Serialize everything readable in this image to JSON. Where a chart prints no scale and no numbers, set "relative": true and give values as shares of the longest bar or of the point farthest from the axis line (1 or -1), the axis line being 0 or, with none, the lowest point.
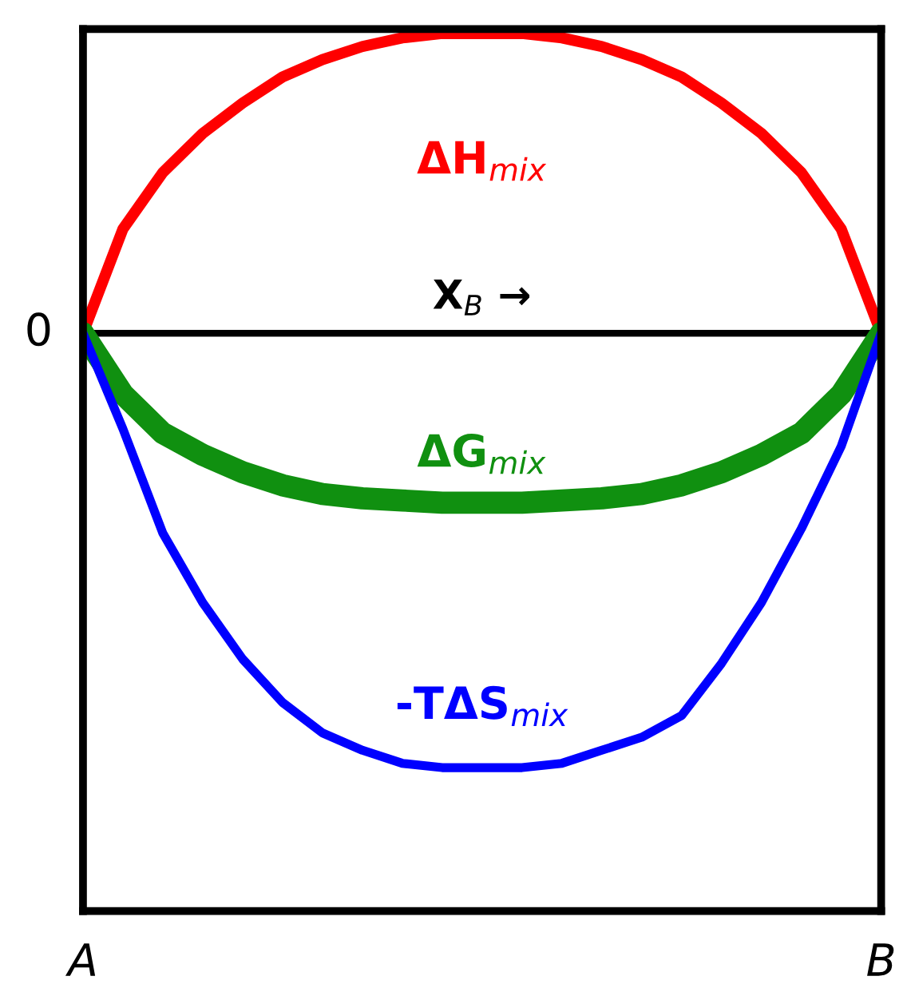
{
  "chart_data": {
    "type": "line",
    "relative": true,
    "xlabel": "X$_{B}$ →",
    "categories": [
      "A",
      null,
      null,
      null,
      null,
      null,
      null,
      null,
      null,
      null,
      null,
      null,
      null,
      null,
      null,
      null,
      null,
      null,
      null,
      null,
      "B"
    ],
    "series": [
      {
        "name": "ΔH$_{mix}$",
        "color": "#ff0000",
        "values": [
          0,
          0.24,
          0.37,
          0.46,
          0.53,
          0.59,
          0.63,
          0.66,
          0.68,
          0.69,
          0.69,
          0.69,
          0.68,
          0.66,
          0.63,
          0.59,
          0.53,
          0.46,
          0.37,
          0.24,
          0
        ]
      },
      {
        "name": "ΔG$_{mix}$",
        "color": "#109010",
        "values": [
          0,
          -0.14,
          -0.23,
          -0.28,
          -0.32,
          -0.35,
          -0.37,
          -0.38,
          -0.385,
          -0.39,
          -0.39,
          -0.39,
          -0.385,
          -0.38,
          -0.37,
          -0.35,
          -0.32,
          -0.28,
          -0.23,
          -0.14,
          0
        ]
      },
      {
        "name": "-TΔS$_{mix}$",
        "color": "#0000ff",
        "values": [
          0,
          -0.22,
          -0.46,
          -0.62,
          -0.75,
          -0.85,
          -0.92,
          -0.96,
          -0.99,
          -1.0,
          -1.0,
          -1.0,
          -0.99,
          -0.96,
          -0.93,
          -0.88,
          -0.76,
          -0.62,
          -0.45,
          -0.26,
          0
        ]
      }
    ],
    "annotations": [
      {
        "text": "0",
        "x": "A",
        "y": 0
      }
    ],
    "legend": false,
    "marker": "none",
    "line_style": "solid"
  }
}
